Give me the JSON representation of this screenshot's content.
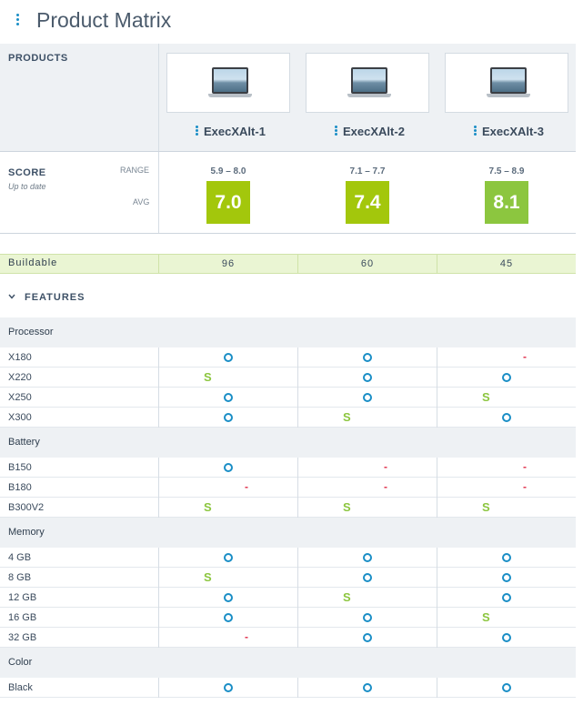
{
  "header": {
    "title": "Product Matrix"
  },
  "products_label": "PRODUCTS",
  "products": [
    {
      "name": "ExecXAlt-1",
      "range": "5.9 – 8.0",
      "avg": "7.0",
      "avg_color": "#a3c70c"
    },
    {
      "name": "ExecXAlt-2",
      "range": "7.1 – 7.7",
      "avg": "7.4",
      "avg_color": "#a3c70c"
    },
    {
      "name": "ExecXAlt-3",
      "range": "7.5 – 8.9",
      "avg": "8.1",
      "avg_color": "#8cc63f"
    }
  ],
  "score": {
    "label": "SCORE",
    "sub": "Up to date",
    "range_label": "RANGE",
    "avg_label": "AVG"
  },
  "buildable": {
    "label": "Buildable",
    "values": [
      "96",
      "60",
      "45"
    ]
  },
  "features_label": "FEATURES",
  "groups": [
    {
      "name": "Processor",
      "rows": [
        {
          "label": "X180",
          "marks": [
            "o",
            "o",
            "-"
          ]
        },
        {
          "label": "X220",
          "marks": [
            "s",
            "o",
            "o"
          ]
        },
        {
          "label": "X250",
          "marks": [
            "o",
            "o",
            "s"
          ]
        },
        {
          "label": "X300",
          "marks": [
            "o",
            "s",
            "o"
          ]
        }
      ]
    },
    {
      "name": "Battery",
      "rows": [
        {
          "label": "B150",
          "marks": [
            "o",
            "-",
            "-"
          ]
        },
        {
          "label": "B180",
          "marks": [
            "-",
            "-",
            "-"
          ]
        },
        {
          "label": "B300V2",
          "marks": [
            "s",
            "s",
            "s"
          ]
        }
      ]
    },
    {
      "name": "Memory",
      "rows": [
        {
          "label": "4 GB",
          "marks": [
            "o",
            "o",
            "o"
          ]
        },
        {
          "label": "8 GB",
          "marks": [
            "s",
            "o",
            "o"
          ]
        },
        {
          "label": "12 GB",
          "marks": [
            "o",
            "s",
            "o"
          ]
        },
        {
          "label": "16 GB",
          "marks": [
            "o",
            "o",
            "s"
          ]
        },
        {
          "label": "32 GB",
          "marks": [
            "-",
            "o",
            "o"
          ]
        }
      ]
    },
    {
      "name": "Color",
      "rows": [
        {
          "label": "Black",
          "marks": [
            "o",
            "o",
            "o"
          ]
        }
      ]
    }
  ],
  "mark_symbols": {
    "s": "S",
    "-": "-"
  },
  "colors": {
    "accent": "#1a8ec6",
    "standard": "#8cc63f",
    "not_available": "#e0314e",
    "buildable_bg": "#eaf5d3"
  }
}
